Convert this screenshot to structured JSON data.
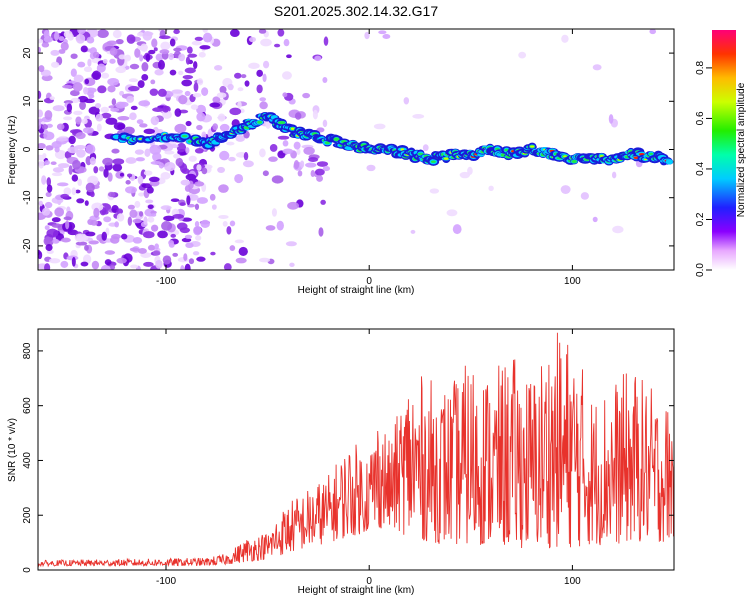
{
  "title": "S201.2025.302.14.32.G17",
  "chart_data": [
    {
      "type": "heatmap",
      "name": "spectrogram",
      "xlabel": "Height of straight line (km)",
      "ylabel": "Frequency (Hz)",
      "xlim": [
        -163,
        150
      ],
      "ylim": [
        -25,
        25
      ],
      "xticks": [
        -100,
        0,
        100
      ],
      "yticks": [
        -20,
        -10,
        0,
        10,
        20
      ],
      "ridge": {
        "x": [
          -125,
          -110,
          -95,
          -80,
          -70,
          -60,
          -50,
          -40,
          -30,
          -20,
          -10,
          0,
          10,
          20,
          30,
          40,
          50,
          60,
          70,
          80,
          90,
          100,
          110,
          120,
          130,
          145
        ],
        "freq": [
          2,
          2,
          3,
          1,
          3,
          5,
          7,
          4,
          3,
          2,
          1,
          0,
          0,
          -1,
          -2,
          -1,
          -1,
          0,
          -1,
          0,
          -1,
          -2,
          -2,
          -2,
          -1,
          -2
        ]
      },
      "colorbar": {
        "label": "Normalized spectral amplitude",
        "range": [
          0.0,
          0.95
        ],
        "ticks": [
          0.0,
          0.2,
          0.4,
          0.6,
          0.8
        ]
      }
    },
    {
      "type": "line",
      "name": "snr",
      "xlabel": "Height of straight line (km)",
      "ylabel": "SNR (10 * v/v)",
      "xlim": [
        -163,
        150
      ],
      "ylim": [
        0,
        880
      ],
      "xticks": [
        -100,
        0,
        100
      ],
      "yticks": [
        0,
        200,
        400,
        600,
        800
      ],
      "color": "#e8322c",
      "series": [
        {
          "name": "SNR",
          "x": [
            -163,
            -140,
            -120,
            -100,
            -80,
            -70,
            -60,
            -50,
            -45,
            -40,
            -30,
            -20,
            -10,
            0,
            5,
            10,
            20,
            30,
            40,
            50,
            60,
            70,
            80,
            90,
            100,
            110,
            120,
            130,
            140,
            150
          ],
          "peak": [
            35,
            38,
            40,
            42,
            45,
            60,
            120,
            140,
            200,
            250,
            300,
            350,
            470,
            450,
            600,
            470,
            730,
            700,
            680,
            780,
            720,
            790,
            720,
            880,
            860,
            640,
            700,
            740,
            660,
            600
          ],
          "base": [
            15,
            15,
            15,
            15,
            15,
            20,
            30,
            40,
            50,
            60,
            80,
            100,
            120,
            140,
            150,
            150,
            120,
            100,
            90,
            90,
            90,
            80,
            80,
            80,
            80,
            90,
            90,
            100,
            100,
            100
          ]
        }
      ]
    }
  ]
}
